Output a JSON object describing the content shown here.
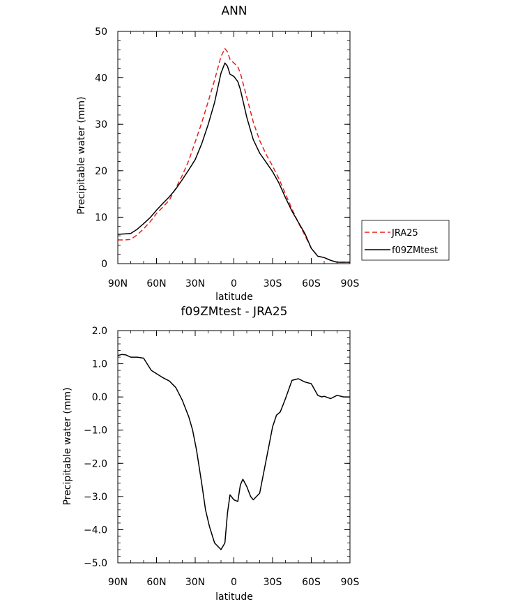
{
  "chart_data": [
    {
      "type": "line",
      "title": "ANN",
      "xlabel": "latitude",
      "ylabel": "Precipitable water (mm)",
      "x_tick_labels": [
        "90N",
        "60N",
        "30N",
        "0",
        "30S",
        "60S",
        "90S"
      ],
      "x_ticks": [
        90,
        60,
        30,
        0,
        -30,
        -60,
        -90
      ],
      "xlim": [
        90,
        -90
      ],
      "ylim": [
        0,
        50
      ],
      "y_ticks": [
        0,
        10,
        20,
        30,
        40,
        50
      ],
      "y_tick_labels": [
        "0",
        "10",
        "20",
        "30",
        "40",
        "50"
      ],
      "legend_position": "right",
      "series": [
        {
          "name": "JRA25",
          "color": "#e8201c",
          "dash": "dashed",
          "x": [
            90,
            85,
            80,
            75,
            70,
            65,
            60,
            55,
            50,
            45,
            40,
            35,
            30,
            25,
            20,
            15,
            10,
            7,
            5,
            3,
            0,
            -3,
            -5,
            -10,
            -15,
            -20,
            -25,
            -30,
            -35,
            -40,
            -45,
            -50,
            -55,
            -60,
            -65,
            -70,
            -75,
            -80,
            -85,
            -88,
            -90
          ],
          "y": [
            5.1,
            5.1,
            5.2,
            6.2,
            7.5,
            9.0,
            10.8,
            12.2,
            13.7,
            16.3,
            19.0,
            22.2,
            26.2,
            30.3,
            34.8,
            39.5,
            44.6,
            46.3,
            45.6,
            44.0,
            43.2,
            42.4,
            41.0,
            35.8,
            30.5,
            26.5,
            23.5,
            21.0,
            18.2,
            15.0,
            11.8,
            8.8,
            6.1,
            3.3,
            1.6,
            1.3,
            0.7,
            0.3,
            0.3,
            0.3,
            0.3
          ]
        },
        {
          "name": "f09ZMtest",
          "color": "#000000",
          "dash": "solid",
          "x": [
            90,
            85,
            80,
            75,
            70,
            65,
            60,
            55,
            50,
            45,
            40,
            35,
            30,
            25,
            20,
            15,
            10,
            7,
            5,
            3,
            0,
            -3,
            -5,
            -10,
            -15,
            -20,
            -25,
            -30,
            -35,
            -40,
            -45,
            -50,
            -55,
            -60,
            -65,
            -70,
            -75,
            -80,
            -85,
            -88,
            -90
          ],
          "y": [
            6.3,
            6.4,
            6.5,
            7.4,
            8.6,
            9.9,
            11.5,
            13.0,
            14.4,
            16.1,
            18.1,
            20.2,
            22.4,
            25.8,
            29.9,
            34.7,
            41.0,
            43.2,
            42.5,
            40.8,
            40.3,
            39.2,
            37.5,
            31.5,
            26.7,
            23.8,
            21.8,
            19.8,
            17.3,
            14.2,
            11.3,
            8.9,
            6.5,
            3.3,
            1.6,
            1.3,
            0.7,
            0.3,
            0.3,
            0.3,
            0.3
          ]
        }
      ]
    },
    {
      "type": "line",
      "title": "f09ZMtest - JRA25",
      "xlabel": "latitude",
      "ylabel": "Precipitable water (mm)",
      "x_tick_labels": [
        "90N",
        "60N",
        "30N",
        "0",
        "30S",
        "60S",
        "90S"
      ],
      "x_ticks": [
        90,
        60,
        30,
        0,
        -30,
        -60,
        -90
      ],
      "xlim": [
        90,
        -90
      ],
      "ylim": [
        -5.0,
        2.0
      ],
      "y_ticks": [
        -5,
        -4,
        -3,
        -2,
        -1,
        0,
        1,
        2
      ],
      "y_tick_labels": [
        "−5.0",
        "−4.0",
        "−3.0",
        "−2.0",
        "−1.0",
        "0.0",
        "1.0",
        "2.0"
      ],
      "series": [
        {
          "color": "#000000",
          "dash": "solid",
          "x": [
            90,
            87,
            84,
            80,
            75,
            70,
            67,
            64,
            60,
            55,
            50,
            45,
            40,
            35,
            32,
            29,
            25,
            22,
            19,
            15,
            10,
            7,
            5,
            3,
            0,
            -3,
            -5,
            -7,
            -10,
            -13,
            -15,
            -20,
            -25,
            -30,
            -33,
            -36,
            -40,
            -45,
            -50,
            -55,
            -60,
            -65,
            -68,
            -70,
            -75,
            -80,
            -85,
            -90
          ],
          "y": [
            1.25,
            1.28,
            1.27,
            1.2,
            1.2,
            1.17,
            0.98,
            0.8,
            0.7,
            0.58,
            0.48,
            0.28,
            -0.1,
            -0.6,
            -1.0,
            -1.6,
            -2.6,
            -3.4,
            -3.9,
            -4.4,
            -4.6,
            -4.4,
            -3.5,
            -2.95,
            -3.1,
            -3.15,
            -2.65,
            -2.48,
            -2.7,
            -3.0,
            -3.1,
            -2.9,
            -1.9,
            -0.9,
            -0.55,
            -0.45,
            -0.05,
            0.5,
            0.55,
            0.45,
            0.4,
            0.05,
            0.0,
            0.02,
            -0.05,
            0.05,
            0.0,
            0.0
          ]
        }
      ]
    }
  ],
  "legend": [
    {
      "label": "JRA25",
      "color": "#e8201c",
      "dash": "dashed"
    },
    {
      "label": "f09ZMtest",
      "color": "#000000",
      "dash": "solid"
    }
  ]
}
